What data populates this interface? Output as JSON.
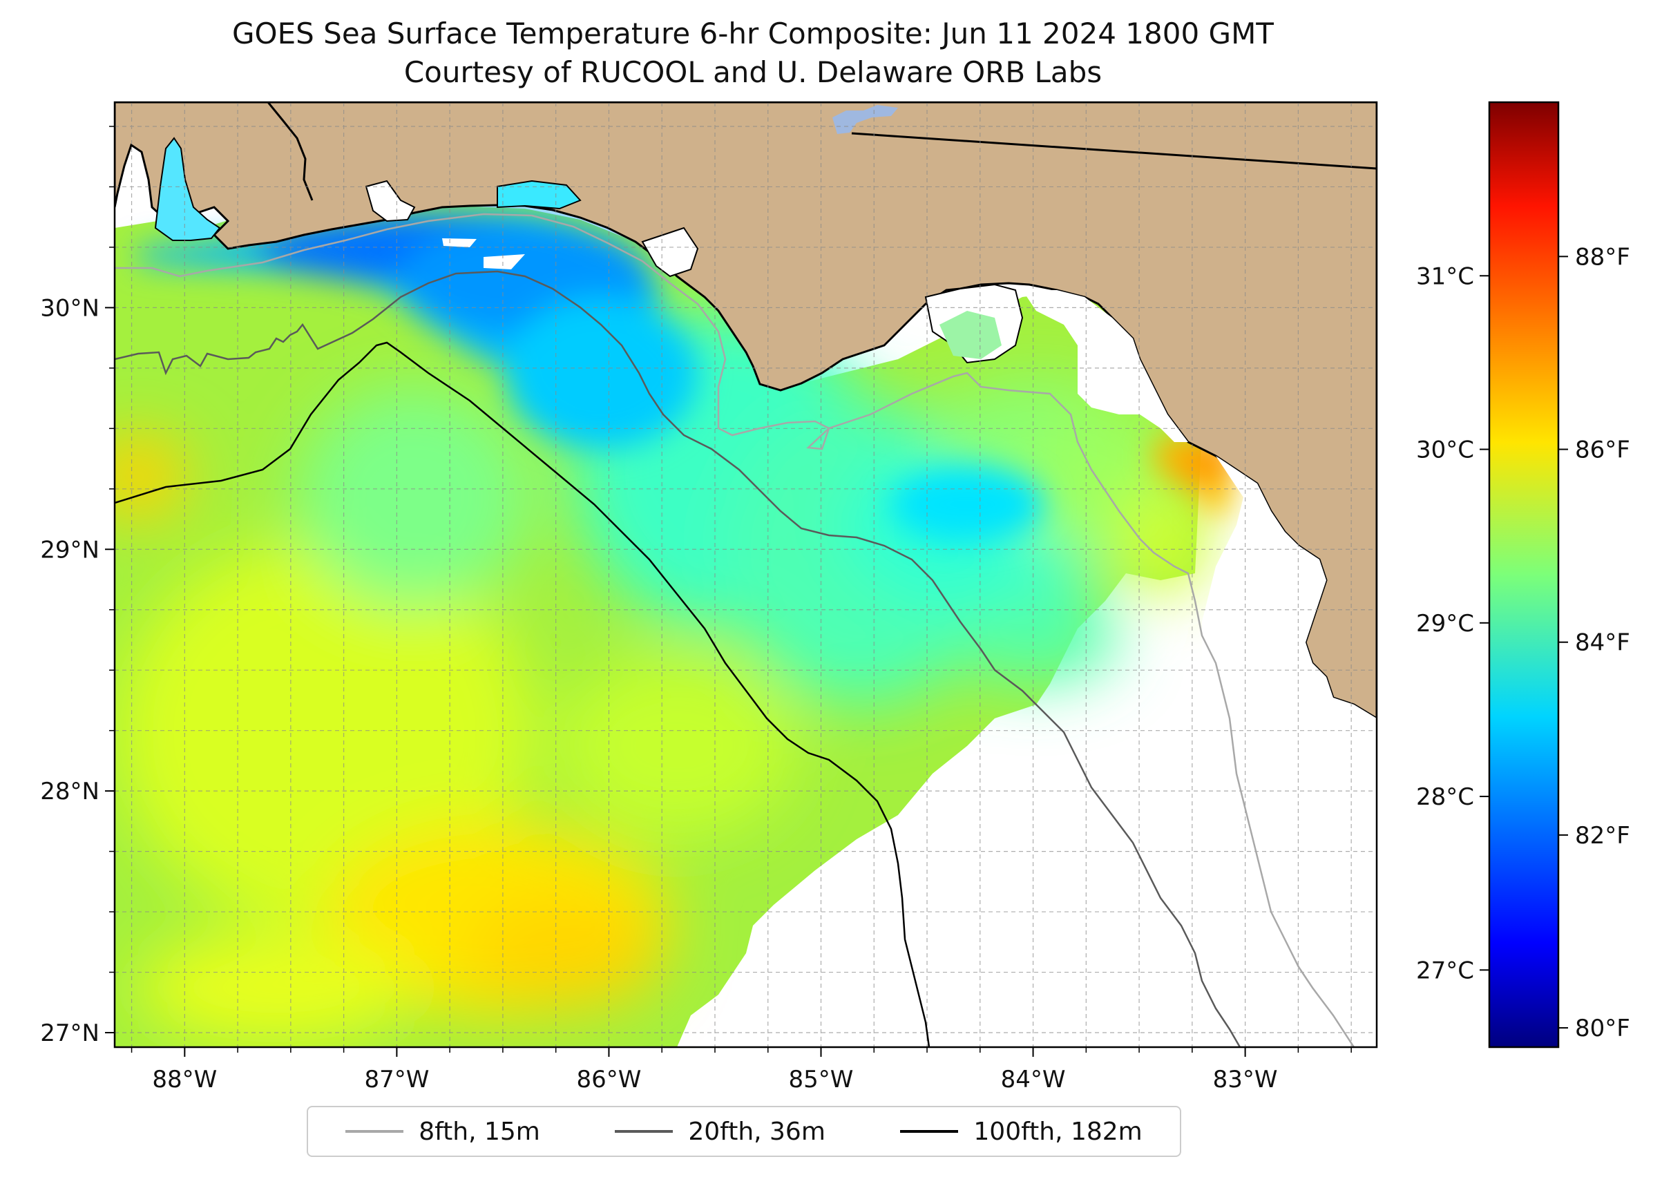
{
  "title": "GOES Sea Surface Temperature 6-hr Composite: Jun 11 2024 1800 GMT",
  "subtitle": "Courtesy of RUCOOL and U. Delaware ORB Labs",
  "map": {
    "lon_range": [
      -88.33,
      -82.38
    ],
    "lat_range": [
      26.94,
      30.85
    ],
    "lon_ticks": [
      {
        "value": -88,
        "label": "88°W"
      },
      {
        "value": -87,
        "label": "87°W"
      },
      {
        "value": -86,
        "label": "86°W"
      },
      {
        "value": -85,
        "label": "85°W"
      },
      {
        "value": -84,
        "label": "84°W"
      },
      {
        "value": -83,
        "label": "83°W"
      }
    ],
    "lat_ticks": [
      {
        "value": 27,
        "label": "27°N"
      },
      {
        "value": 28,
        "label": "28°N"
      },
      {
        "value": 29,
        "label": "29°N"
      },
      {
        "value": 30,
        "label": "30°N"
      }
    ],
    "grid": "dashed, minor every 0.25°",
    "land_color": "#cfb18b",
    "no_data_color": "#ffffff",
    "lake_color": "#9fb8e0"
  },
  "colorbar": {
    "colormap": "jet",
    "fahrenheit_range": [
      79.8,
      89.6
    ],
    "celsius_ticks": [
      {
        "value": 27,
        "label": "27°C"
      },
      {
        "value": 28,
        "label": "28°C"
      },
      {
        "value": 29,
        "label": "29°C"
      },
      {
        "value": 30,
        "label": "30°C"
      },
      {
        "value": 31,
        "label": "31°C"
      }
    ],
    "fahrenheit_ticks": [
      {
        "value": 80,
        "label": "80°F"
      },
      {
        "value": 82,
        "label": "82°F"
      },
      {
        "value": 84,
        "label": "84°F"
      },
      {
        "value": 86,
        "label": "86°F"
      },
      {
        "value": 88,
        "label": "88°F"
      }
    ]
  },
  "legend": {
    "placement": "bottom-center",
    "items": [
      {
        "label": "8fth, 15m",
        "color": "#a8a8a8"
      },
      {
        "label": "20fth, 36m",
        "color": "#5a5a5a"
      },
      {
        "label": "100fth, 182m",
        "color": "#000000"
      }
    ]
  }
}
